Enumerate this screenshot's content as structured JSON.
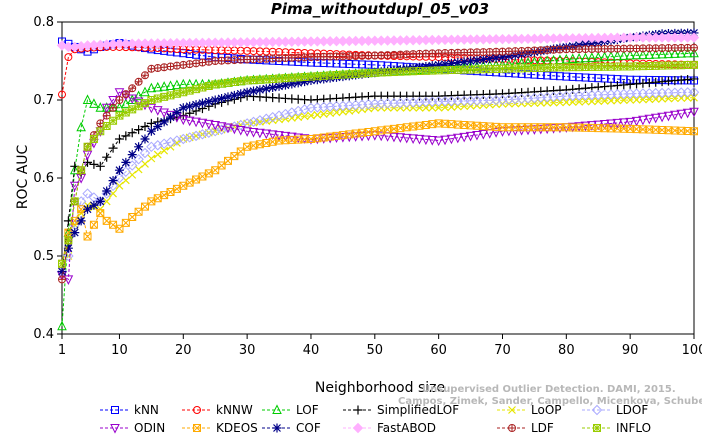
{
  "chart_data": {
    "type": "line",
    "title": "Pima_withoutdupl_05_v03",
    "xlabel": "Neighborhood size",
    "ylabel": "ROC AUC",
    "xlim": [
      1,
      100
    ],
    "ylim": [
      0.4,
      0.8
    ],
    "xticks": [
      1,
      10,
      20,
      30,
      40,
      50,
      60,
      70,
      80,
      90,
      100
    ],
    "yticks": [
      0.4,
      0.5,
      0.6,
      0.7,
      0.8
    ],
    "grid": false,
    "legend_placement": "bottom",
    "credit_lines": [
      "Unsupervised Outlier Detection. DAMI, 2015.",
      "Campos, Zimek, Sander, Campello, Micenkova, Schubert, Assent, Houle"
    ],
    "series": [
      {
        "name": "kNN",
        "color": "#0000ff",
        "marker": "square",
        "x": [
          1,
          2,
          3,
          5,
          7,
          10,
          15,
          20,
          25,
          30,
          40,
          50,
          60,
          70,
          80,
          90,
          100
        ],
        "y": [
          0.775,
          0.772,
          0.768,
          0.762,
          0.768,
          0.773,
          0.765,
          0.76,
          0.755,
          0.752,
          0.748,
          0.745,
          0.74,
          0.735,
          0.73,
          0.726,
          0.725
        ]
      },
      {
        "name": "kNNW",
        "color": "#ff0000",
        "marker": "circle",
        "x": [
          1,
          2,
          3,
          5,
          8,
          10,
          15,
          20,
          30,
          40,
          50,
          60,
          70,
          80,
          90,
          100
        ],
        "y": [
          0.707,
          0.755,
          0.765,
          0.767,
          0.768,
          0.768,
          0.767,
          0.765,
          0.763,
          0.76,
          0.757,
          0.755,
          0.752,
          0.75,
          0.747,
          0.745
        ]
      },
      {
        "name": "LOF",
        "color": "#00cc00",
        "marker": "triangle-up",
        "x": [
          1,
          2,
          3,
          4,
          5,
          7,
          10,
          15,
          20,
          25,
          30,
          40,
          50,
          60,
          70,
          80,
          90,
          100
        ],
        "y": [
          0.41,
          0.53,
          0.61,
          0.665,
          0.7,
          0.69,
          0.69,
          0.715,
          0.72,
          0.72,
          0.725,
          0.73,
          0.735,
          0.74,
          0.745,
          0.752,
          0.757,
          0.76
        ]
      },
      {
        "name": "SimplifiedLOF",
        "color": "#000000",
        "marker": "plus",
        "x": [
          1,
          2,
          3,
          4,
          5,
          7,
          10,
          15,
          20,
          25,
          30,
          40,
          50,
          60,
          70,
          80,
          90,
          100
        ],
        "y": [
          0.48,
          0.545,
          0.615,
          0.605,
          0.62,
          0.615,
          0.65,
          0.67,
          0.68,
          0.695,
          0.705,
          0.7,
          0.705,
          0.705,
          0.708,
          0.713,
          0.72,
          0.727
        ]
      },
      {
        "name": "LoOP",
        "color": "#e6e600",
        "marker": "x",
        "x": [
          1,
          2,
          3,
          4,
          5,
          7,
          10,
          15,
          20,
          30,
          40,
          50,
          60,
          70,
          80,
          90,
          100
        ],
        "y": [
          0.48,
          0.5,
          0.54,
          0.555,
          0.565,
          0.56,
          0.59,
          0.625,
          0.65,
          0.67,
          0.68,
          0.69,
          0.69,
          0.695,
          0.697,
          0.7,
          0.703
        ]
      },
      {
        "name": "LDOF",
        "color": "#aaaaff",
        "marker": "diamond",
        "x": [
          1,
          2,
          3,
          4,
          5,
          7,
          10,
          15,
          20,
          30,
          40,
          50,
          60,
          70,
          80,
          90,
          100
        ],
        "y": [
          0.48,
          0.5,
          0.54,
          0.57,
          0.58,
          0.57,
          0.6,
          0.64,
          0.65,
          0.67,
          0.69,
          0.695,
          0.698,
          0.7,
          0.705,
          0.708,
          0.71
        ]
      },
      {
        "name": "ODIN",
        "color": "#9900cc",
        "marker": "triangle-down",
        "x": [
          1,
          2,
          3,
          4,
          5,
          7,
          8,
          10,
          15,
          20,
          25,
          30,
          40,
          50,
          60,
          70,
          80,
          90,
          100
        ],
        "y": [
          0.475,
          0.47,
          0.59,
          0.6,
          0.63,
          0.66,
          0.69,
          0.71,
          0.69,
          0.675,
          0.668,
          0.66,
          0.65,
          0.655,
          0.648,
          0.66,
          0.665,
          0.672,
          0.685
        ]
      },
      {
        "name": "KDEOS",
        "color": "#ffaa00",
        "marker": "square-x",
        "x": [
          1,
          2,
          3,
          4,
          5,
          7,
          8,
          10,
          12,
          15,
          20,
          25,
          30,
          35,
          40,
          45,
          50,
          55,
          60,
          70,
          80,
          90,
          100
        ],
        "y": [
          0.49,
          0.53,
          0.545,
          0.56,
          0.525,
          0.555,
          0.545,
          0.535,
          0.55,
          0.57,
          0.59,
          0.61,
          0.64,
          0.648,
          0.65,
          0.655,
          0.66,
          0.665,
          0.67,
          0.665,
          0.665,
          0.663,
          0.66
        ]
      },
      {
        "name": "COF",
        "color": "#000088",
        "marker": "asterisk",
        "x": [
          1,
          2,
          3,
          4,
          5,
          7,
          10,
          15,
          20,
          25,
          30,
          40,
          50,
          60,
          70,
          80,
          90,
          95,
          100
        ],
        "y": [
          0.48,
          0.51,
          0.53,
          0.545,
          0.56,
          0.57,
          0.61,
          0.66,
          0.69,
          0.7,
          0.71,
          0.725,
          0.735,
          0.745,
          0.755,
          0.768,
          0.78,
          0.785,
          0.786
        ]
      },
      {
        "name": "FastABOD",
        "color": "#ffb0ff",
        "marker": "diamond-filled",
        "x": [
          1,
          2,
          3,
          5,
          10,
          20,
          30,
          40,
          50,
          60,
          70,
          80,
          90,
          100
        ],
        "y": [
          0.77,
          0.768,
          0.768,
          0.77,
          0.772,
          0.773,
          0.774,
          0.775,
          0.776,
          0.777,
          0.778,
          0.779,
          0.78,
          0.78
        ]
      },
      {
        "name": "LDF",
        "color": "#aa2222",
        "marker": "circle-plus",
        "x": [
          1,
          2,
          3,
          4,
          5,
          7,
          10,
          12,
          15,
          20,
          25,
          30,
          40,
          50,
          60,
          70,
          80,
          90,
          100
        ],
        "y": [
          0.47,
          0.52,
          0.57,
          0.61,
          0.64,
          0.67,
          0.7,
          0.715,
          0.74,
          0.745,
          0.75,
          0.752,
          0.755,
          0.757,
          0.76,
          0.762,
          0.765,
          0.766,
          0.767
        ]
      },
      {
        "name": "INFLO",
        "color": "#99cc00",
        "marker": "square-star",
        "x": [
          1,
          2,
          3,
          4,
          5,
          7,
          10,
          15,
          20,
          25,
          30,
          40,
          50,
          60,
          70,
          80,
          90,
          100
        ],
        "y": [
          0.49,
          0.52,
          0.57,
          0.61,
          0.64,
          0.66,
          0.68,
          0.7,
          0.71,
          0.72,
          0.725,
          0.73,
          0.735,
          0.738,
          0.74,
          0.742,
          0.743,
          0.745
        ]
      }
    ]
  }
}
